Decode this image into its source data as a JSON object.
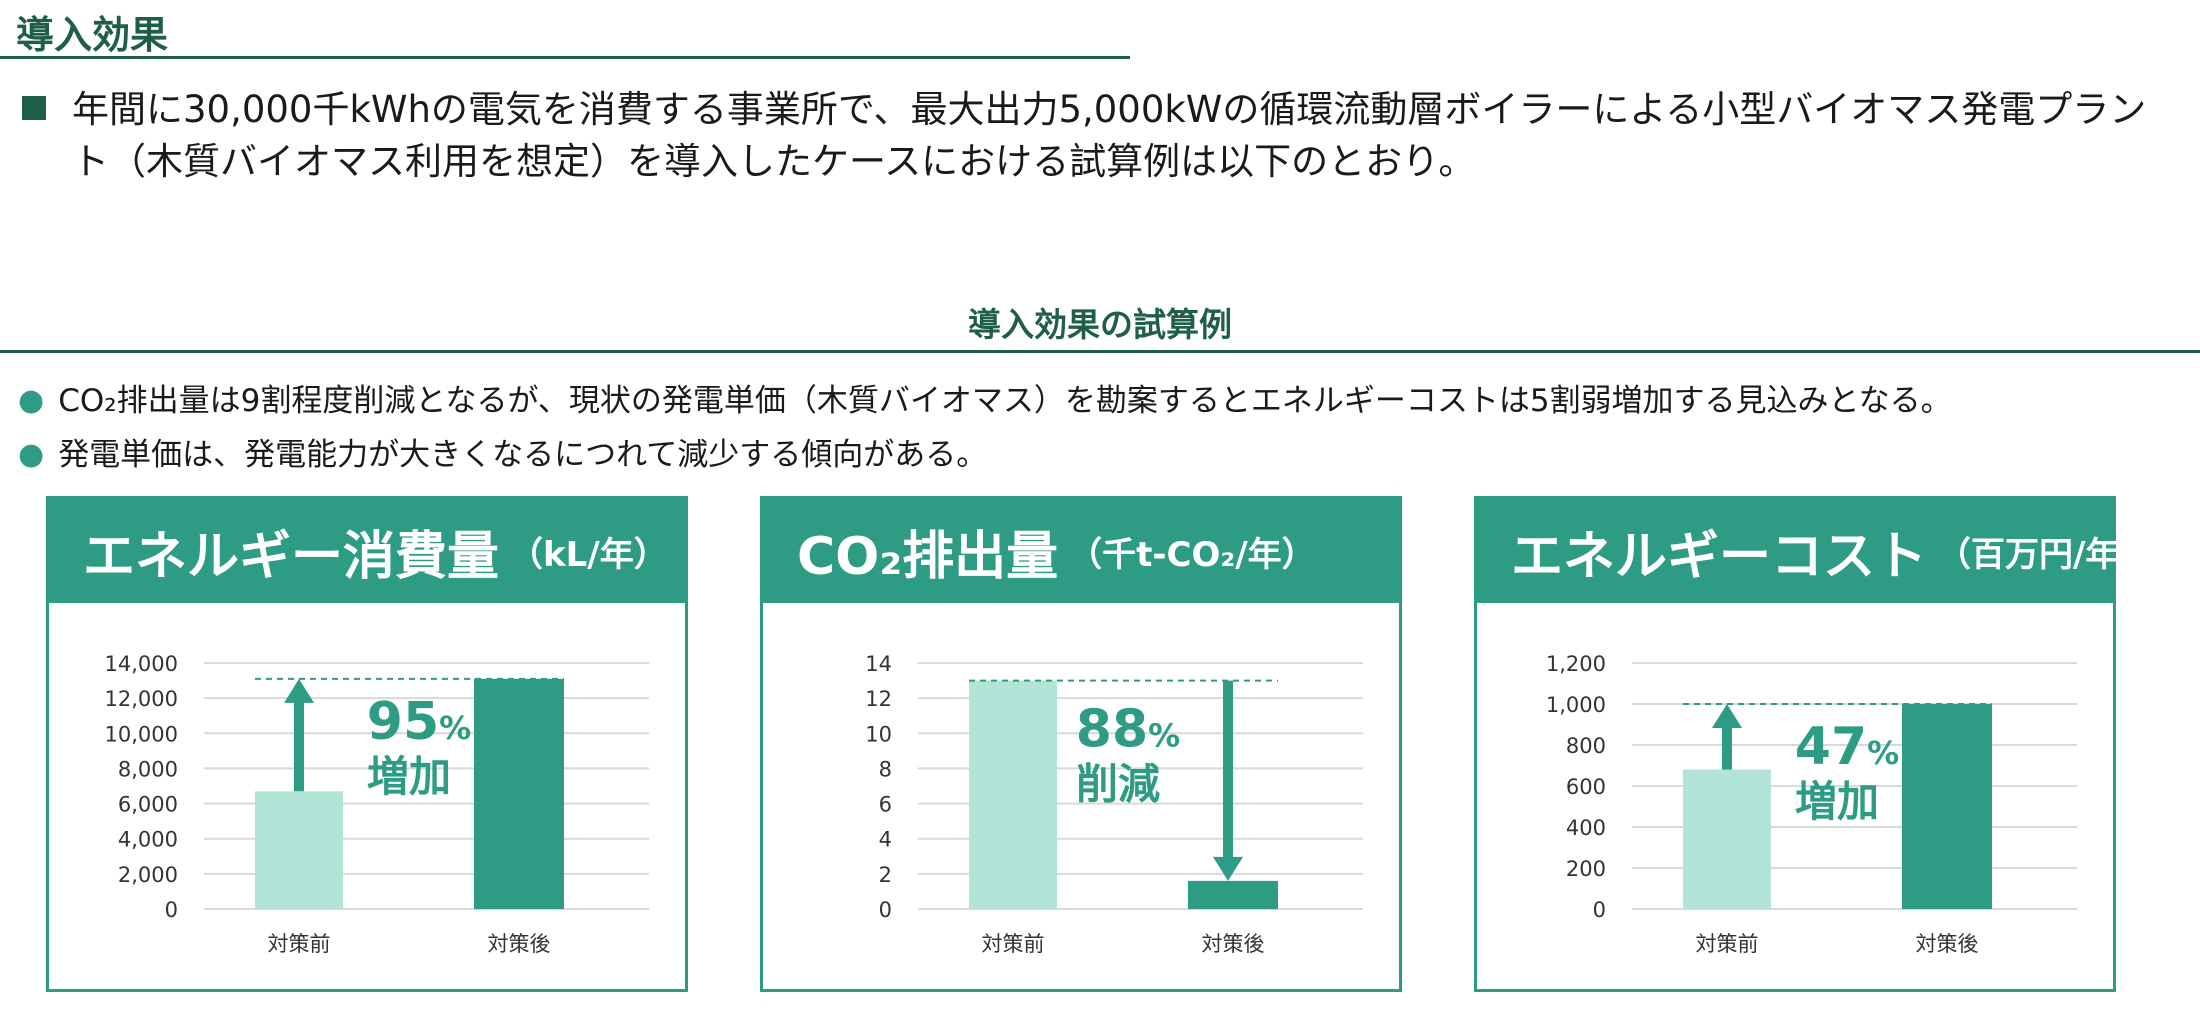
{
  "page": {
    "title": "導入効果",
    "lead": "年間に30,000千kWhの電気を消費する事業所で、最大出力5,000kWの循環流動層ボイラーによる小型バイオマス発電プラント（木質バイオマス利用を想定）を導入したケースにおける試算例は以下のとおり。",
    "section_title": "導入効果の試算例",
    "bullets": [
      "CO₂排出量は9割程度削減となるが、現状の発電単価（木質バイオマス）を勘案するとエネルギーコストは5割弱増加する見込みとなる。",
      "発電単価は、発電能力が大きくなるにつれて減少する傾向がある。"
    ]
  },
  "colors": {
    "brand_dark": "#1f5f4a",
    "accent": "#2e9c84",
    "before_bar": "#b2e4d7",
    "after_bar": "#2e9c84",
    "grid": "#d9d9d9"
  },
  "chart_data": [
    {
      "type": "bar",
      "title": "エネルギー消費量",
      "unit": "（kL/年）",
      "categories": [
        "対策前",
        "対策後"
      ],
      "values": [
        6700,
        13100
      ],
      "ylim": [
        0,
        14000
      ],
      "yticks": [
        0,
        2000,
        4000,
        6000,
        8000,
        10000,
        12000,
        14000
      ],
      "ytick_labels": [
        "0",
        "2,000",
        "4,000",
        "6,000",
        "8,000",
        "10,000",
        "12,000",
        "14,000"
      ],
      "grid": true,
      "annotation": {
        "percent": "95",
        "percent_sign": "%",
        "label": "増加",
        "direction": "up"
      }
    },
    {
      "type": "bar",
      "title": "CO₂排出量",
      "unit": "（千t-CO₂/年）",
      "categories": [
        "対策前",
        "対策後"
      ],
      "values": [
        13,
        1.6
      ],
      "ylim": [
        0,
        14
      ],
      "yticks": [
        0,
        2,
        4,
        6,
        8,
        10,
        12,
        14
      ],
      "ytick_labels": [
        "0",
        "2",
        "4",
        "6",
        "8",
        "10",
        "12",
        "14"
      ],
      "grid": true,
      "annotation": {
        "percent": "88",
        "percent_sign": "%",
        "label": "削減",
        "direction": "down"
      }
    },
    {
      "type": "bar",
      "title": "エネルギーコスト",
      "unit": "（百万円/年）",
      "categories": [
        "対策前",
        "対策後"
      ],
      "values": [
        680,
        1000
      ],
      "ylim": [
        0,
        1200
      ],
      "yticks": [
        0,
        200,
        400,
        600,
        800,
        1000,
        1200
      ],
      "ytick_labels": [
        "0",
        "200",
        "400",
        "600",
        "800",
        "1,000",
        "1,200"
      ],
      "grid": true,
      "annotation": {
        "percent": "47",
        "percent_sign": "%",
        "label": "増加",
        "direction": "up"
      }
    }
  ]
}
